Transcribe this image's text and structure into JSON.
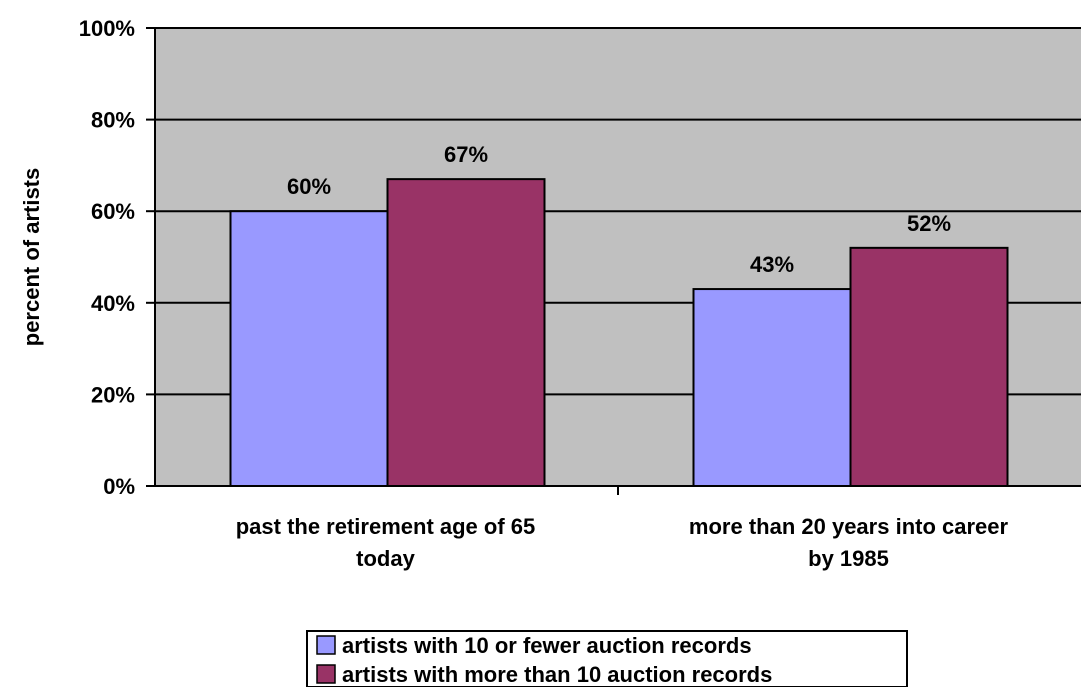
{
  "chart_data": {
    "type": "bar",
    "title": "",
    "xlabel": "",
    "ylabel": "percent of artists",
    "ylim": [
      0,
      100
    ],
    "yticks": [
      "0%",
      "20%",
      "40%",
      "60%",
      "80%",
      "100%"
    ],
    "grid": true,
    "legend_position": "bottom",
    "categories": [
      [
        "past the retirement age of 65",
        "today"
      ],
      [
        "more than 20 years into career",
        "by 1985"
      ]
    ],
    "series": [
      {
        "name": "artists with 10 or fewer auction records",
        "values": [
          60,
          43
        ],
        "labels": [
          "60%",
          "43%"
        ],
        "color": "#9999ff"
      },
      {
        "name": "artists with more than 10 auction records",
        "values": [
          67,
          52
        ],
        "labels": [
          "67%",
          "52%"
        ],
        "color": "#993366"
      }
    ],
    "plot_background": "#c0c0c0"
  }
}
